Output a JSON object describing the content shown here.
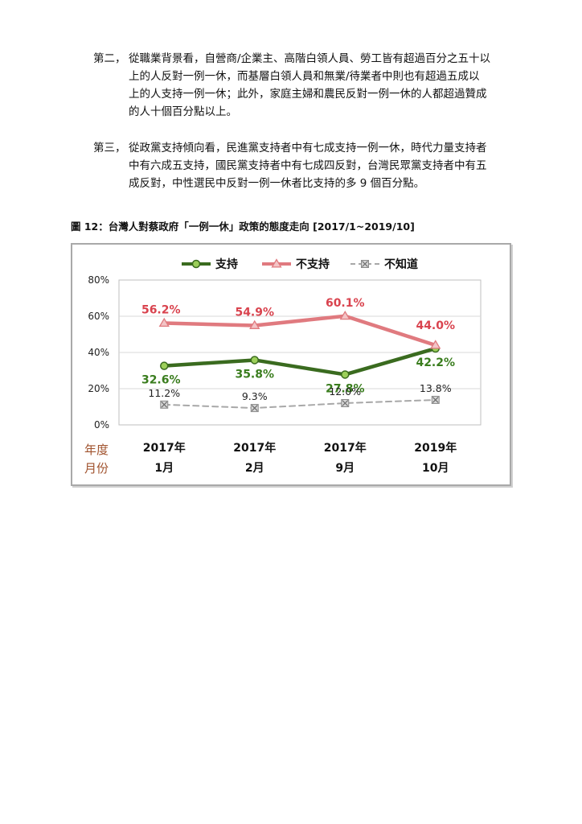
{
  "paragraphs": [
    {
      "lead": "第二，",
      "lines": [
        "從職業背景看，自營商/企業主、高階白領人員、勞工皆有超過百分之五十以",
        "上的人反對一例一休，而基層白領人員和無業/待業者中則也有超過五成以",
        "上的人支持一例一休；此外，家庭主婦和農民反對一例一休的人都超過贊成",
        "的人十個百分點以上。"
      ]
    },
    {
      "lead": "第三，",
      "lines": [
        "從政黨支持傾向看，民進黨支持者中有七成支持一例一休，時代力量支持者",
        "中有六成五支持，國民黨支持者中有七成四反對，台灣民眾黨支持者中有五",
        "成反對，中性選民中反對一例一休者比支持的多 9 個百分點。"
      ]
    }
  ],
  "caption": "圖 12：台灣人對蔡政府「一例一休」政策的態度走向  [2017/1~2019/10]",
  "chart_data": {
    "type": "line",
    "categories": [
      {
        "year": "2017年",
        "month": "1月"
      },
      {
        "year": "2017年",
        "month": "2月"
      },
      {
        "year": "2017年",
        "month": "9月"
      },
      {
        "year": "2019年",
        "month": "10月"
      }
    ],
    "axis_note": {
      "line1": "年度",
      "line2": "月份"
    },
    "ylim": [
      0,
      80
    ],
    "yticks": [
      "0%",
      "20%",
      "40%",
      "60%",
      "80%"
    ],
    "grid": true,
    "legend_position": "top",
    "series": [
      {
        "name": "支持",
        "values": [
          32.6,
          35.8,
          27.8,
          42.2
        ],
        "labels": [
          "32.6%",
          "35.8%",
          "27.8%",
          "42.2%"
        ],
        "color": "#3a6b1f",
        "label_color": "#3a7d1e",
        "marker": "circle",
        "marker_fill": "#9ccf5a",
        "dash": false
      },
      {
        "name": "不支持",
        "values": [
          56.2,
          54.9,
          60.1,
          44.0
        ],
        "labels": [
          "56.2%",
          "54.9%",
          "60.1%",
          "44.0%"
        ],
        "color": "#e07a7f",
        "label_color": "#d9434e",
        "marker": "triangle",
        "marker_fill": "#f3c4c6",
        "dash": false
      },
      {
        "name": "不知道",
        "values": [
          11.2,
          9.3,
          12.0,
          13.8
        ],
        "labels": [
          "11.2%",
          "9.3%",
          "12.0%",
          "13.8%"
        ],
        "color": "#a8a8a8",
        "label_color": "#222222",
        "marker": "xbox",
        "marker_fill": "#d6d6d6",
        "dash": true
      }
    ],
    "axis_note_color": "#a0522d"
  }
}
